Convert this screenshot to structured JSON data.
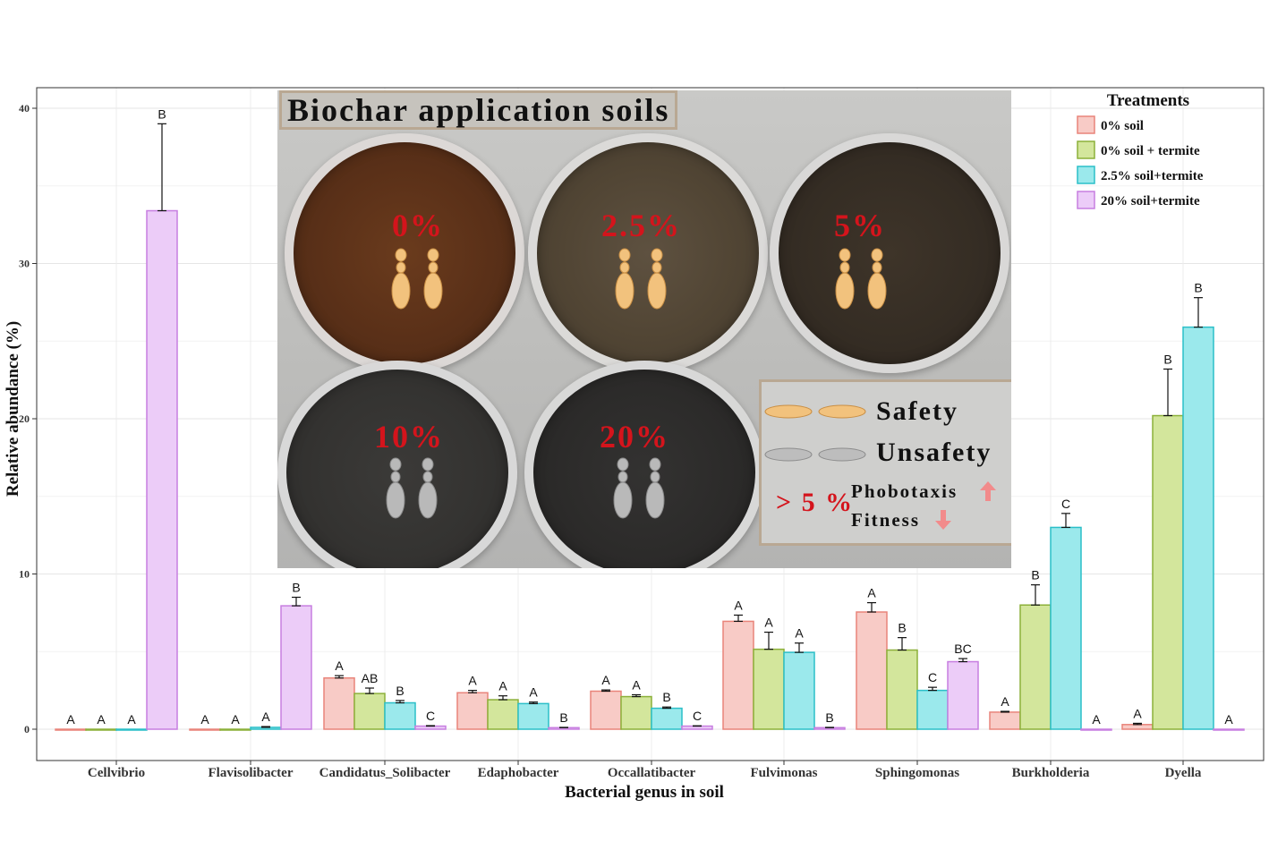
{
  "chart_data": {
    "type": "bar",
    "xlabel": "Bacterial genus in soil",
    "ylabel": "Relative abundance (%)",
    "ylim": [
      0,
      40
    ],
    "yticks": [
      0,
      10,
      20,
      30,
      40
    ],
    "grid": true,
    "legend": {
      "title": "Treatments",
      "position": "top-right"
    },
    "categories": [
      "Cellvibrio",
      "Flavisolibacter",
      "Candidatus_Solibacter",
      "Edaphobacter",
      "Occallatibacter",
      "Fulvimonas",
      "Sphingomonas",
      "Burkholderia",
      "Dyella"
    ],
    "series": [
      {
        "name": "0% soil",
        "color": "#F8CBC6",
        "edge": "#E9847A",
        "values": [
          0,
          0,
          3.3,
          2.35,
          2.45,
          6.95,
          7.55,
          1.1,
          0.3
        ],
        "errors": [
          0,
          0,
          0.15,
          0.15,
          0.08,
          0.4,
          0.6,
          0.05,
          0.08
        ],
        "letters": [
          "A",
          "A",
          "A",
          "A",
          "A",
          "A",
          "A",
          "A",
          "A"
        ]
      },
      {
        "name": "0% soil + termite",
        "color": "#D3E69C",
        "edge": "#8CB03A",
        "values": [
          0,
          0,
          2.3,
          1.9,
          2.1,
          5.15,
          5.1,
          8.0,
          20.2
        ],
        "errors": [
          0,
          0,
          0.35,
          0.25,
          0.12,
          1.1,
          0.8,
          1.3,
          3.0
        ],
        "letters": [
          "A",
          "A",
          "AB",
          "A",
          "A",
          "A",
          "B",
          "B",
          "B"
        ]
      },
      {
        "name": "2.5% soil+termite",
        "color": "#9BE9EC",
        "edge": "#2BBFC8",
        "values": [
          0,
          0.12,
          1.7,
          1.65,
          1.35,
          4.95,
          2.5,
          13.0,
          25.9
        ],
        "errors": [
          0,
          0.05,
          0.15,
          0.1,
          0.08,
          0.6,
          0.2,
          0.9,
          1.9
        ],
        "letters": [
          "A",
          "A",
          "B",
          "A",
          "B",
          "A",
          "C",
          "C",
          "B"
        ]
      },
      {
        "name": "20% soil+termite",
        "color": "#ECCCF8",
        "edge": "#C77EE0",
        "values": [
          33.4,
          7.95,
          0.2,
          0.1,
          0.2,
          0.1,
          4.35,
          0,
          0
        ],
        "errors": [
          5.6,
          0.55,
          0.03,
          0.02,
          0.02,
          0.02,
          0.2,
          0,
          0
        ],
        "letters": [
          "B",
          "B",
          "C",
          "B",
          "C",
          "B",
          "BC",
          "A",
          "A"
        ]
      }
    ]
  },
  "inset": {
    "title": "Biochar application soils",
    "cups": [
      "0%",
      "2.5%",
      "5%",
      "10%",
      "20%"
    ],
    "legend": {
      "safety": "Safety",
      "unsafety": "Unsafety",
      "threshold": "> 5 %",
      "phobotaxis": "Phobotaxis",
      "fitness": "Fitness",
      "up_color": "#F28B8B",
      "down_color": "#F28B8B"
    }
  }
}
